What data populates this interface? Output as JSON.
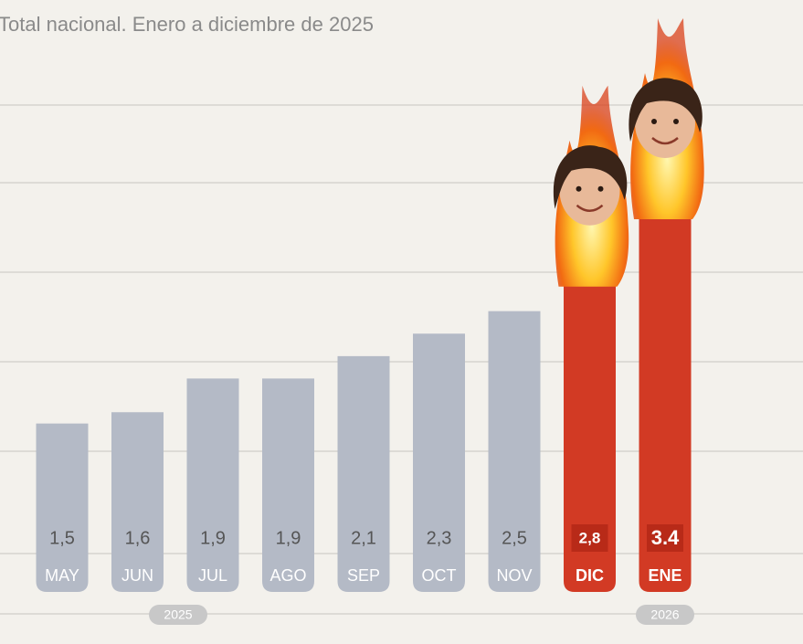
{
  "chart_data": {
    "type": "bar",
    "title": "Total nacional. Enero a diciembre de 2025",
    "categories": [
      "MAY",
      "JUN",
      "JUL",
      "AGO",
      "SEP",
      "OCT",
      "NOV",
      "DIC",
      "ENE"
    ],
    "values": [
      1.5,
      1.6,
      1.9,
      1.9,
      2.1,
      2.3,
      2.5,
      2.8,
      3.4
    ],
    "value_labels": [
      "1,5",
      "1,6",
      "1,9",
      "1,9",
      "2,1",
      "2,3",
      "2,5",
      "2,8",
      "3.4"
    ],
    "colors": [
      "#b4bac6",
      "#b4bac6",
      "#b4bac6",
      "#b4bac6",
      "#b4bac6",
      "#b4bac6",
      "#b4bac6",
      "#d23a24",
      "#d23a24"
    ],
    "year_labels": [
      "2025",
      "2026"
    ]
  }
}
